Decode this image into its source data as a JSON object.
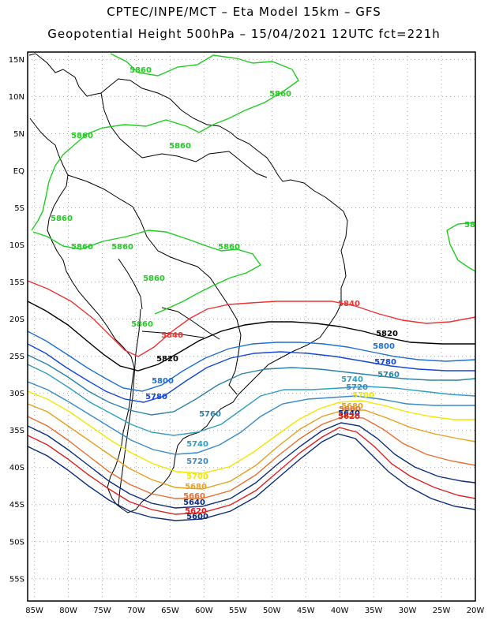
{
  "header": {
    "line1": "CPTEC/INPE/MCT –  Eta Model 15km – GFS",
    "line2": "Geopotential Height 500hPa – 15/04/2021 12UTC fct=221h"
  },
  "map": {
    "lon_range": [
      -86,
      -20
    ],
    "lat_range": [
      -58,
      16
    ],
    "lat_ticks": [
      "15N",
      "10N",
      "5N",
      "EQ",
      "5S",
      "10S",
      "15S",
      "20S",
      "25S",
      "30S",
      "35S",
      "40S",
      "45S",
      "50S",
      "55S"
    ],
    "lon_ticks": [
      "85W",
      "80W",
      "75W",
      "70W",
      "65W",
      "60W",
      "55W",
      "50W",
      "45W",
      "40W",
      "35W",
      "30W",
      "25W",
      "20W"
    ]
  },
  "contours": [
    {
      "value": "5860",
      "color": "#22cc22"
    },
    {
      "value": "5840",
      "color": "#ee3333"
    },
    {
      "value": "5820",
      "color": "#000000"
    },
    {
      "value": "5800",
      "color": "#1e6fd0"
    },
    {
      "value": "5780",
      "color": "#1446d8"
    },
    {
      "value": "5760",
      "color": "#2b83a8"
    },
    {
      "value": "5740",
      "color": "#2f9fc0"
    },
    {
      "value": "5720",
      "color": "#3a8ac8"
    },
    {
      "value": "5700",
      "color": "#f0e800"
    },
    {
      "value": "5680",
      "color": "#e8a020"
    },
    {
      "value": "5660",
      "color": "#e87030"
    },
    {
      "value": "5640",
      "color": "#0a2c7a"
    },
    {
      "value": "5620",
      "color": "#dd2020"
    },
    {
      "value": "5600",
      "color": "#0a2c7a"
    }
  ],
  "colors": {
    "land_outline": "#000000",
    "grid": "#aaaaaa"
  }
}
